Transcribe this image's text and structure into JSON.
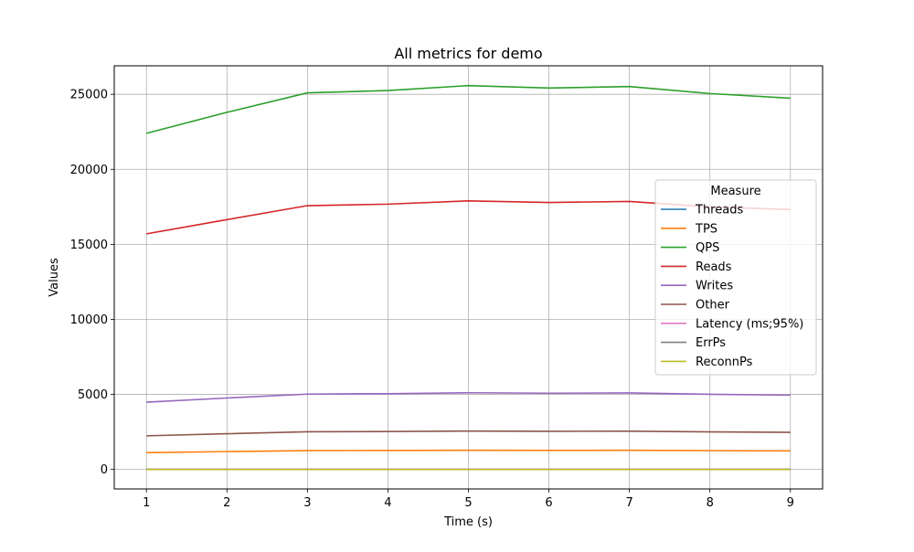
{
  "chart_data": {
    "type": "line",
    "title": "All metrics for demo",
    "xlabel": "Time (s)",
    "ylabel": "Values",
    "x": [
      1,
      2,
      3,
      4,
      5,
      6,
      7,
      8,
      9
    ],
    "xlim": [
      0.6,
      9.4
    ],
    "ylim": [
      -1300,
      26900
    ],
    "xticks": [
      1,
      2,
      3,
      4,
      5,
      6,
      7,
      8,
      9
    ],
    "yticks": [
      0,
      5000,
      10000,
      15000,
      20000,
      25000
    ],
    "grid": true,
    "legend": {
      "title": "Measure",
      "position": "center-right"
    },
    "series": [
      {
        "name": "Threads",
        "color": "#1f77b4",
        "values": [
          8,
          8,
          8,
          8,
          8,
          8,
          8,
          8,
          8
        ]
      },
      {
        "name": "TPS",
        "color": "#ff7f0e",
        "values": [
          1120,
          1190,
          1255,
          1262,
          1280,
          1270,
          1275,
          1250,
          1237
        ]
      },
      {
        "name": "QPS",
        "color": "#2ca02c",
        "values": [
          22400,
          23800,
          25100,
          25250,
          25580,
          25420,
          25520,
          25050,
          24740
        ]
      },
      {
        "name": "Reads",
        "color": "#d62728",
        "values": [
          15700,
          16650,
          17580,
          17680,
          17900,
          17790,
          17860,
          17500,
          17320
        ]
      },
      {
        "name": "Writes",
        "color": "#9467bd",
        "values": [
          4480,
          4760,
          5020,
          5050,
          5110,
          5080,
          5100,
          5010,
          4950
        ]
      },
      {
        "name": "Other",
        "color": "#8c564b",
        "values": [
          2240,
          2380,
          2510,
          2525,
          2555,
          2540,
          2550,
          2500,
          2475
        ]
      },
      {
        "name": "Latency (ms;95%)",
        "color": "#e377c2",
        "values": [
          9,
          9,
          8,
          8,
          8,
          8,
          8,
          8,
          8
        ]
      },
      {
        "name": "ErrPs",
        "color": "#7f7f7f",
        "values": [
          0,
          0,
          0,
          0,
          0,
          0,
          0,
          0,
          0
        ]
      },
      {
        "name": "ReconnPs",
        "color": "#bcbd22",
        "values": [
          0,
          0,
          0,
          0,
          0,
          0,
          0,
          0,
          0
        ]
      }
    ]
  }
}
